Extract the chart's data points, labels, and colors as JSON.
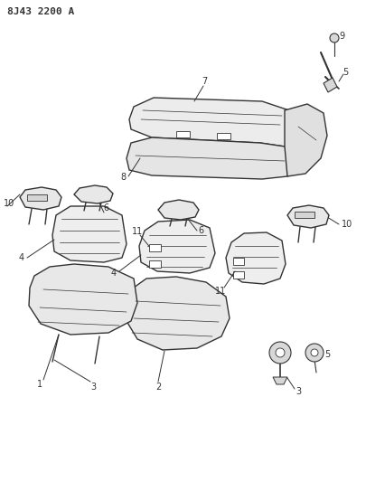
{
  "title": "8J43 2200 A",
  "bg_color": "#ffffff",
  "line_color": "#333333",
  "figsize": [
    4.06,
    5.33
  ],
  "dpi": 100
}
